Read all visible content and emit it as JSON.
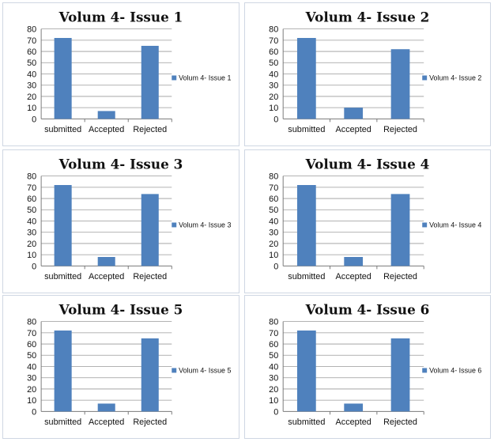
{
  "colors": {
    "bar": "#4f81bd",
    "border": "#cfd7e3",
    "grid": "#9a9a9a"
  },
  "chart_data": [
    {
      "type": "bar",
      "title": "Volum 4- Issue 1",
      "categories": [
        "submitted",
        "Accepted",
        "Rejected"
      ],
      "series": [
        {
          "name": "Volum 4- Issue 1",
          "values": [
            72,
            7,
            65
          ]
        }
      ],
      "ylim": [
        0,
        80
      ],
      "yticks": [
        "0",
        "10",
        "20",
        "30",
        "40",
        "50",
        "60",
        "70",
        "80"
      ],
      "grid": true,
      "legend": "right"
    },
    {
      "type": "bar",
      "title": "Volum 4- Issue 2",
      "categories": [
        "submitted",
        "Accepted",
        "Rejected"
      ],
      "series": [
        {
          "name": "Volum 4- Issue 2",
          "values": [
            72,
            10,
            62
          ]
        }
      ],
      "ylim": [
        0,
        80
      ],
      "yticks": [
        "0",
        "10",
        "20",
        "30",
        "40",
        "50",
        "60",
        "70",
        "80"
      ],
      "grid": true,
      "legend": "right"
    },
    {
      "type": "bar",
      "title": "Volum 4- Issue 3",
      "categories": [
        "submitted",
        "Accepted",
        "Rejected"
      ],
      "series": [
        {
          "name": "Volum 4- Issue 3",
          "values": [
            72,
            8,
            64
          ]
        }
      ],
      "ylim": [
        0,
        80
      ],
      "yticks": [
        "0",
        "10",
        "20",
        "30",
        "40",
        "50",
        "60",
        "70",
        "80"
      ],
      "grid": true,
      "legend": "right"
    },
    {
      "type": "bar",
      "title": "Volum 4- Issue 4",
      "categories": [
        "submitted",
        "Accepted",
        "Rejected"
      ],
      "series": [
        {
          "name": "Volum 4- Issue 4",
          "values": [
            72,
            8,
            64
          ]
        }
      ],
      "ylim": [
        0,
        80
      ],
      "yticks": [
        "0",
        "10",
        "20",
        "30",
        "40",
        "50",
        "60",
        "70",
        "80"
      ],
      "grid": true,
      "legend": "right"
    },
    {
      "type": "bar",
      "title": "Volum 4- Issue 5",
      "categories": [
        "submitted",
        "Accepted",
        "Rejected"
      ],
      "series": [
        {
          "name": "Volum 4- Issue 5",
          "values": [
            72,
            7,
            65
          ]
        }
      ],
      "ylim": [
        0,
        80
      ],
      "yticks": [
        "0",
        "10",
        "20",
        "30",
        "40",
        "50",
        "60",
        "70",
        "80"
      ],
      "grid": true,
      "legend": "right"
    },
    {
      "type": "bar",
      "title": "Volum 4- Issue 6",
      "categories": [
        "submitted",
        "Accepted",
        "Rejected"
      ],
      "series": [
        {
          "name": "Volum 4- Issue 6",
          "values": [
            72,
            7,
            65
          ]
        }
      ],
      "ylim": [
        0,
        80
      ],
      "yticks": [
        "0",
        "10",
        "20",
        "30",
        "40",
        "50",
        "60",
        "70",
        "80"
      ],
      "grid": true,
      "legend": "right"
    }
  ]
}
